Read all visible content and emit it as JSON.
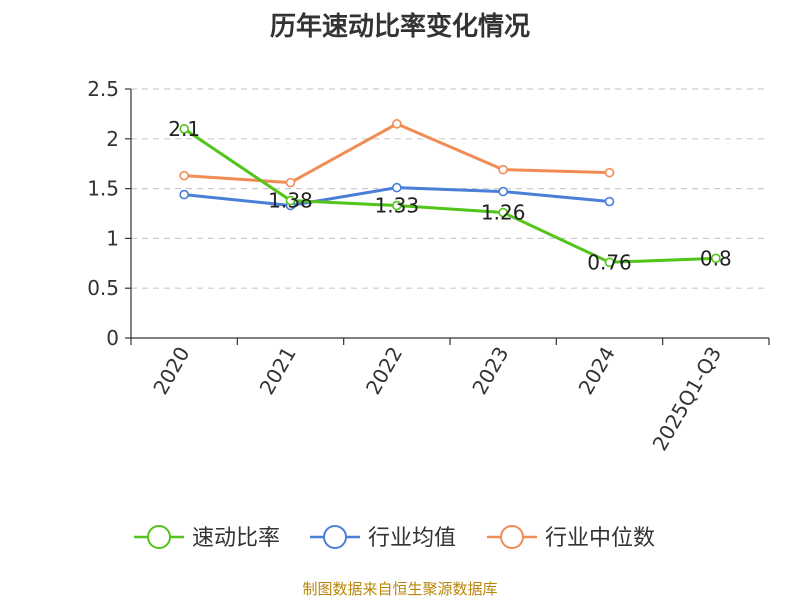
{
  "chart_data": {
    "type": "line",
    "title": "历年速动比率变化情况",
    "categories": [
      "2020",
      "2021",
      "2022",
      "2023",
      "2024",
      "2025Q1-Q3"
    ],
    "ylim": [
      0,
      2.5
    ],
    "yticks": [
      0,
      0.5,
      1,
      1.5,
      2,
      2.5
    ],
    "ytick_labels": [
      "0",
      "0.5",
      "1",
      "1.5",
      "2",
      "2.5"
    ],
    "grid": true,
    "legend_position": "bottom",
    "series": [
      {
        "name": "速动比率",
        "color": "#52c41a",
        "values": [
          2.1,
          1.38,
          1.33,
          1.26,
          0.76,
          0.8
        ],
        "labels": [
          "2.1",
          "1.38",
          "1.33",
          "1.26",
          "0.76",
          "0.8"
        ]
      },
      {
        "name": "行业均值",
        "color": "#4a7fd8",
        "values": [
          1.44,
          1.33,
          1.51,
          1.47,
          1.37,
          null
        ]
      },
      {
        "name": "行业中位数",
        "color": "#f28c55",
        "values": [
          1.63,
          1.56,
          2.15,
          1.69,
          1.66,
          null
        ]
      }
    ]
  },
  "source": "制图数据来自恒生聚源数据库"
}
